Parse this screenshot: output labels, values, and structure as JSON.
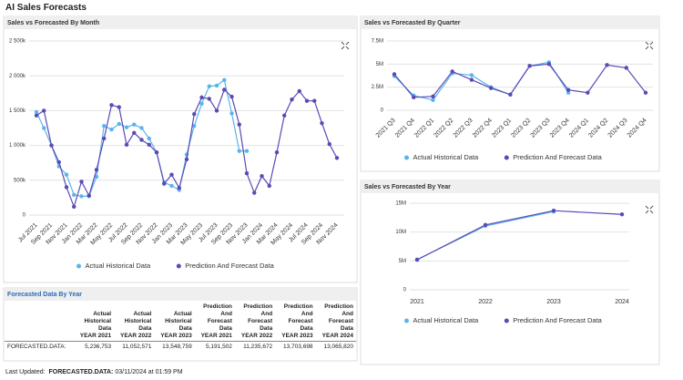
{
  "page_title": "AI Sales Forecasts",
  "chart_data": [
    {
      "type": "line",
      "title": "Sales vs Forecasted By Month",
      "categories": [
        "Jul 2021",
        null,
        "Sep 2021",
        null,
        "Nov 2021",
        null,
        "Jan 2022",
        null,
        "Mar 2022",
        null,
        "May 2022",
        null,
        "Jul 2022",
        null,
        "Sep 2022",
        null,
        "Nov 2022",
        null,
        "Jan 2023",
        null,
        "Mar 2023",
        null,
        "May 2023",
        null,
        "Jul 2023",
        null,
        "Sep 2023",
        null,
        "Nov 2023",
        null,
        "Jan 2024",
        null,
        "Mar 2024",
        null,
        "May 2024",
        null,
        "Jul 2024",
        null,
        "Sep 2024",
        null,
        "Nov 2024"
      ],
      "series": [
        {
          "name": "Actual Historical Data",
          "color": "#5ab4ec",
          "values": [
            1480000,
            1250000,
            1000000,
            700000,
            580000,
            290000,
            270000,
            270000,
            550000,
            1280000,
            1230000,
            1310000,
            1260000,
            1300000,
            1250000,
            1100000,
            900000,
            470000,
            420000,
            360000,
            870000,
            1280000,
            1600000,
            1850000,
            1860000,
            1940000,
            1460000,
            920000,
            920000,
            null,
            null,
            null,
            null,
            null,
            null,
            null,
            null,
            null,
            null,
            null,
            null
          ]
        },
        {
          "name": "Prediction And Forecast Data",
          "color": "#5a4ab4",
          "values": [
            1430000,
            1500000,
            1000000,
            760000,
            400000,
            120000,
            480000,
            280000,
            650000,
            1100000,
            1580000,
            1550000,
            1010000,
            1180000,
            1080000,
            1010000,
            900000,
            450000,
            580000,
            390000,
            800000,
            1450000,
            1690000,
            1670000,
            1500000,
            1800000,
            1700000,
            1300000,
            600000,
            320000,
            560000,
            420000,
            900000,
            1430000,
            1660000,
            1780000,
            1640000,
            1640000,
            1320000,
            1020000,
            820000
          ]
        }
      ],
      "ylim": [
        0,
        2500000
      ],
      "yticks": [
        0,
        {
          "value": 500000,
          "label": "500k"
        },
        {
          "value": 1000000,
          "label": "1 000k"
        },
        {
          "value": 1500000,
          "label": "1 500k"
        },
        {
          "value": 2000000,
          "label": "2 000k"
        },
        {
          "value": 2500000,
          "label": "2 500k"
        }
      ],
      "grid": true,
      "legend": "bottom"
    },
    {
      "type": "line",
      "title": "Sales vs Forecasted By Quarter",
      "categories": [
        "2021 Q3",
        "2021 Q4",
        "2022 Q1",
        "2022 Q2",
        "2022 Q3",
        "2022 Q4",
        "2023 Q1",
        "2023 Q2",
        "2023 Q3",
        "2023 Q4",
        "2024 Q1",
        "2024 Q2",
        "2024 Q3",
        "2024 Q4"
      ],
      "series": [
        {
          "name": "Actual Historical Data",
          "color": "#5ab4ec",
          "values": [
            3700000,
            1600000,
            1100000,
            4000000,
            3800000,
            2500000,
            1700000,
            4800000,
            5200000,
            1900000,
            null,
            null,
            null,
            null
          ]
        },
        {
          "name": "Prediction And Forecast Data",
          "color": "#5a4ab4",
          "values": [
            3900000,
            1400000,
            1500000,
            4200000,
            3300000,
            2400000,
            1700000,
            4800000,
            5000000,
            2200000,
            1900000,
            4900000,
            4600000,
            1900000
          ]
        }
      ],
      "ylim": [
        0,
        7500000
      ],
      "yticks": [
        0,
        {
          "value": 2500000,
          "label": "2.5M"
        },
        {
          "value": 5000000,
          "label": "5M"
        },
        {
          "value": 7500000,
          "label": "7.5M"
        }
      ],
      "grid": true,
      "legend": "bottom"
    },
    {
      "type": "line",
      "title": "Sales vs Forecasted By Year",
      "categories": [
        "2021",
        "2022",
        "2023",
        "2024"
      ],
      "series": [
        {
          "name": "Actual Historical Data",
          "color": "#5ab4ec",
          "values": [
            5236753,
            11052571,
            13548759,
            null
          ]
        },
        {
          "name": "Prediction And Forecast Data",
          "color": "#5a4ab4",
          "values": [
            5191502,
            11235672,
            13703698,
            13065820
          ]
        }
      ],
      "ylim": [
        0,
        15000000
      ],
      "yticks": [
        0,
        {
          "value": 5000000,
          "label": "5M"
        },
        {
          "value": 10000000,
          "label": "10M"
        },
        {
          "value": 15000000,
          "label": "15M"
        }
      ],
      "grid": true,
      "legend": "bottom"
    }
  ],
  "table": {
    "title": "Forecasted Data By Year",
    "columns": [
      {
        "name": "Actual Historical Data",
        "year": "YEAR 2021"
      },
      {
        "name": "Actual Historical Data",
        "year": "YEAR 2022"
      },
      {
        "name": "Actual Historical Data",
        "year": "YEAR 2023"
      },
      {
        "name": "Prediction And Forecast Data",
        "year": "YEAR 2021"
      },
      {
        "name": "Prediction And Forecast Data",
        "year": "YEAR 2022"
      },
      {
        "name": "Prediction And Forecast Data",
        "year": "YEAR 2023"
      },
      {
        "name": "Prediction And Forecast Data",
        "year": "YEAR 2024"
      }
    ],
    "rows": [
      {
        "label": "FORECASTED.DATA:",
        "cells": [
          "5,236,753",
          "11,052,571",
          "13,548,759",
          "5,191,502",
          "11,235,672",
          "13,703,698",
          "13,065,820"
        ]
      }
    ]
  },
  "footer": {
    "label": "Last Updated:",
    "source": "FORECASTED.DATA:",
    "time": "03/11/2024 at 01:59 PM"
  }
}
